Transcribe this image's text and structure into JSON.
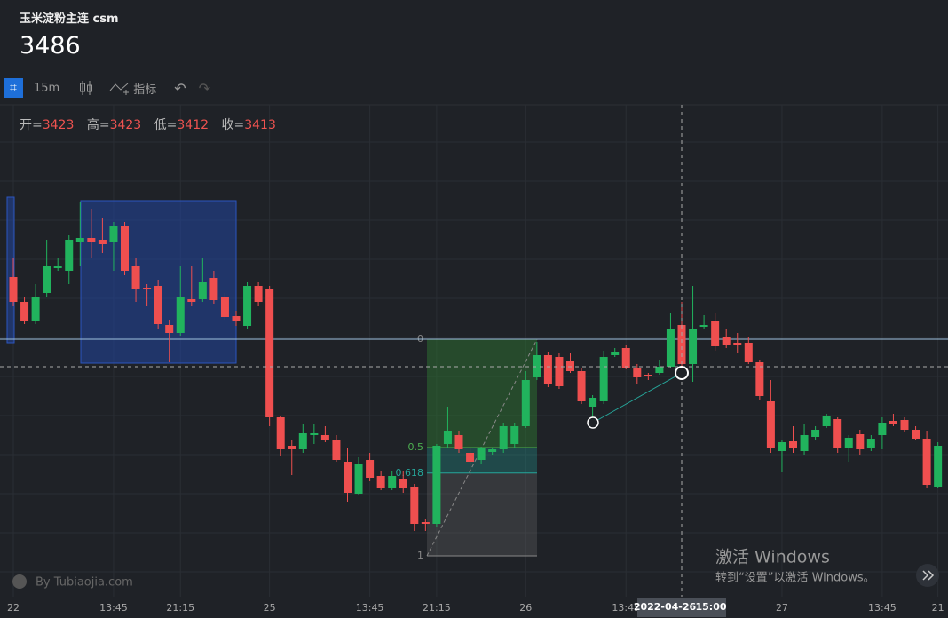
{
  "header": {
    "title": "玉米淀粉主连 csm",
    "price": 3486
  },
  "toolbar": {
    "interval": "15m",
    "indicators": "指标"
  },
  "ohlc_legend": [
    {
      "label": "开=",
      "value": 3423
    },
    {
      "label": "高=",
      "value": 3423
    },
    {
      "label": "低=",
      "value": 3412
    },
    {
      "label": "收=",
      "value": 3413
    }
  ],
  "chart_data": {
    "type": "candlestick",
    "categories": [
      "22",
      null,
      null,
      null,
      null,
      null,
      null,
      null,
      null,
      "13:45",
      null,
      null,
      null,
      null,
      null,
      "21:15",
      null,
      null,
      null,
      null,
      null,
      null,
      null,
      "25",
      null,
      null,
      null,
      null,
      null,
      null,
      null,
      null,
      "13:45",
      null,
      null,
      null,
      null,
      null,
      "21:15",
      null,
      null,
      null,
      null,
      null,
      null,
      null,
      "26",
      null,
      null,
      null,
      null,
      null,
      null,
      null,
      null,
      "13:45",
      null,
      null,
      null,
      null,
      null,
      null,
      null,
      null,
      null,
      null,
      null,
      null,
      null,
      "27",
      null,
      null,
      null,
      null,
      null,
      null,
      null,
      null,
      "13:45",
      null,
      null,
      null,
      null,
      "21"
    ],
    "open": [
      3477,
      3470,
      3464.5,
      3472.5,
      3479.5,
      3478.75,
      3487,
      3488,
      3487.5,
      3487,
      3491.25,
      3480,
      3474,
      3474.5,
      3463.5,
      3461.25,
      3470.75,
      3470.75,
      3476.75,
      3471.25,
      3466,
      3463.25,
      3474.5,
      3473.75,
      3437.5,
      3429.5,
      3428.5,
      3432.5,
      3432.5,
      3431.25,
      3425,
      3416,
      3425.5,
      3421,
      3417.5,
      3420,
      3418,
      3408,
      3407.5,
      3430,
      3432.5,
      3427.5,
      3425.5,
      3427.75,
      3428.5,
      3430,
      3435,
      3448.75,
      3455,
      3454.5,
      3453.5,
      3450.5,
      3440.5,
      3442,
      3455,
      3457,
      3451.5,
      3449.5,
      3450,
      3451.75,
      3463.5,
      3452.5,
      3463,
      3464.5,
      3460,
      3458.5,
      3458.5,
      3453,
      3442,
      3428,
      3430.75,
      3428,
      3432,
      3435,
      3437,
      3428.75,
      3432.75,
      3428.75,
      3432.5,
      3436.5,
      3436.75,
      3434,
      3431.5,
      3418
    ],
    "high": [
      3482.5,
      3471.25,
      3475,
      3487.5,
      3482.5,
      3488.75,
      3498,
      3496.25,
      3493.75,
      3492.5,
      3492.5,
      3482.5,
      3475,
      3476.25,
      3465,
      3480,
      3480,
      3482.5,
      3478.75,
      3472.5,
      3467.5,
      3475.5,
      3475.5,
      3474.5,
      3438,
      3431.25,
      3435.5,
      3435.5,
      3435,
      3432.5,
      3428.75,
      3426.25,
      3427.5,
      3422.5,
      3422.5,
      3422.5,
      3418.75,
      3408.75,
      3430,
      3440.5,
      3433.75,
      3428.75,
      3429.25,
      3428.75,
      3436,
      3436,
      3450.5,
      3458.75,
      3456,
      3455.5,
      3455.5,
      3451.25,
      3443.75,
      3456.25,
      3457,
      3458,
      3452.5,
      3450,
      3453.75,
      3467,
      3470,
      3474.5,
      3466.25,
      3467,
      3462.5,
      3461.25,
      3460,
      3453.75,
      3448,
      3431.25,
      3435,
      3435.5,
      3435,
      3438.5,
      3437.5,
      3432.5,
      3434,
      3432.5,
      3437.5,
      3438.5,
      3437.5,
      3435,
      3433.75,
      3430.5
    ],
    "low": [
      3468.75,
      3463.75,
      3463.75,
      3471.25,
      3478.75,
      3475,
      3480,
      3482.5,
      3483.75,
      3478.75,
      3477.5,
      3470,
      3468.75,
      3462.5,
      3453,
      3460.5,
      3468.75,
      3470,
      3469.5,
      3465,
      3463.25,
      3462.5,
      3468.75,
      3435,
      3426.5,
      3421.25,
      3427.5,
      3430,
      3430.5,
      3425,
      3413.75,
      3415.5,
      3419.5,
      3417,
      3417,
      3416.25,
      3405.5,
      3405.5,
      3406.5,
      3428.75,
      3427.5,
      3421.25,
      3424.5,
      3427,
      3427.5,
      3429,
      3434.5,
      3448,
      3446,
      3445.5,
      3450,
      3441.25,
      3437.5,
      3441.25,
      3454.5,
      3451,
      3447,
      3448,
      3449.5,
      3451.25,
      3450,
      3447.5,
      3462.5,
      3456.25,
      3457,
      3455.5,
      3452.5,
      3442.5,
      3427.5,
      3422,
      3427.5,
      3427,
      3431,
      3434.5,
      3427.5,
      3425,
      3427,
      3428,
      3428.5,
      3435,
      3433.5,
      3431,
      3417.5,
      3417.5
    ],
    "close": [
      3470,
      3464.5,
      3471.25,
      3480,
      3480,
      3487.5,
      3488,
      3487,
      3486.25,
      3491.25,
      3478.75,
      3473.75,
      3473.5,
      3463.75,
      3461.25,
      3471.25,
      3470,
      3475.5,
      3470.5,
      3465.75,
      3464.5,
      3474.5,
      3470,
      3437.5,
      3428.5,
      3428.5,
      3433,
      3433,
      3431,
      3425.5,
      3416.25,
      3424.5,
      3420.5,
      3417.5,
      3421,
      3417.5,
      3407.5,
      3407.5,
      3429.5,
      3433.75,
      3428.5,
      3425,
      3428.75,
      3428.5,
      3435,
      3435,
      3448,
      3455,
      3446.75,
      3446.25,
      3450.5,
      3442,
      3443,
      3454.5,
      3456,
      3451.5,
      3448.75,
      3449,
      3451.75,
      3462.5,
      3452.5,
      3462.5,
      3463.5,
      3457.5,
      3458,
      3458,
      3453,
      3443.5,
      3428.75,
      3430.5,
      3428.75,
      3432.5,
      3434,
      3438,
      3428.75,
      3431.75,
      3428.5,
      3431.5,
      3436,
      3435.5,
      3434,
      3431.5,
      3418.5,
      3429.5
    ],
    "up_color": "#21b35d",
    "down_color": "#ef4f4f",
    "ylim": [
      3387.5,
      3525
    ],
    "fib_levels": [
      0,
      0.5,
      0.618,
      1
    ],
    "crosshair": {
      "date": "2022-04-26",
      "time": "15:00"
    }
  },
  "watermark": "By Tubiaojia.com",
  "os_notice": {
    "title": "激活 Windows",
    "subtitle": "转到“设置”以激活 Windows。"
  }
}
